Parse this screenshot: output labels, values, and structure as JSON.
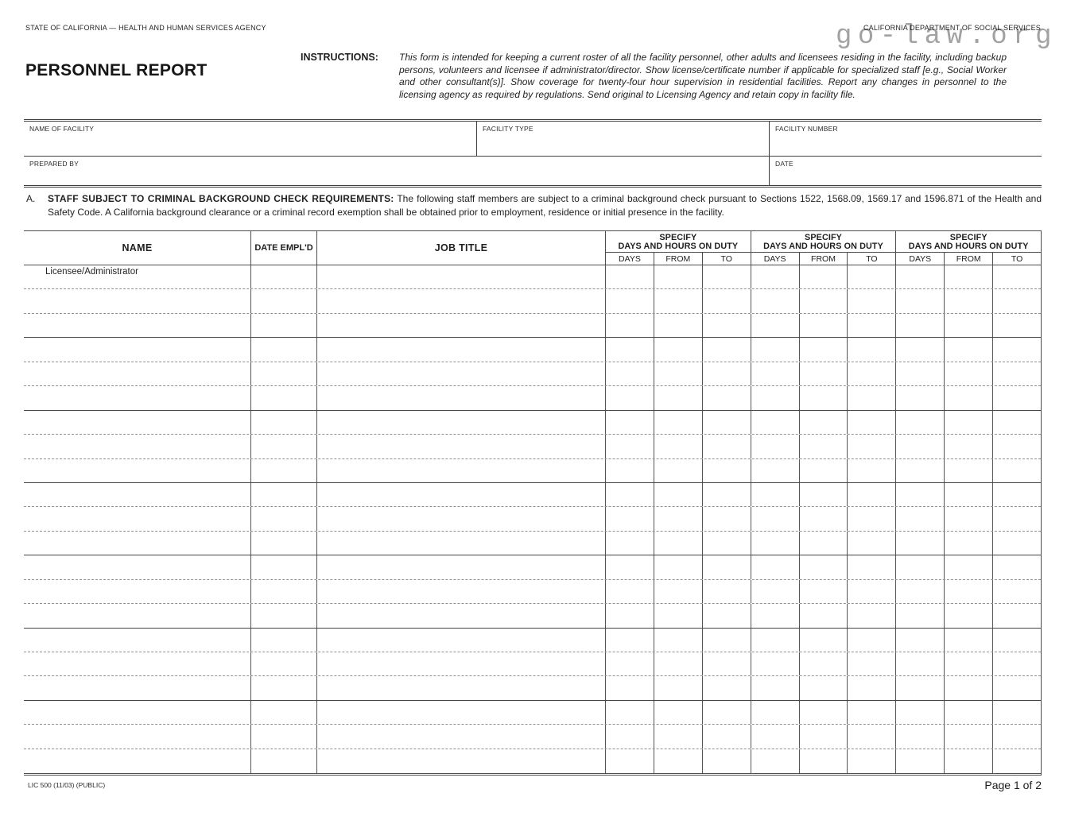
{
  "header": {
    "agency_line": "STATE OF CALIFORNIA — HEALTH AND HUMAN SERVICES AGENCY",
    "department_line": "CALIFORNIA DEPARTMENT OF SOCIAL SERVICES",
    "title": "PERSONNEL REPORT",
    "watermark": "go-law.org"
  },
  "instructions": {
    "label": "INSTRUCTIONS:",
    "text": "This form is intended for keeping a current roster of all the facility personnel, other adults and licensees residing in the facility, including backup persons, volunteers and licensee if administrator/director. Show license/certificate number if applicable for specialized staff [e.g., Social Worker and other consultant(s)]. Show coverage for twenty-four hour supervision in residential facilities. Report any changes in personnel to the licensing agency as required by regulations. Send original to Licensing Agency and retain copy in facility file."
  },
  "facility_fields": {
    "name_of_facility_label": "NAME OF FACILITY",
    "facility_type_label": "FACILITY TYPE",
    "facility_number_label": "FACILITY NUMBER",
    "prepared_by_label": "PREPARED BY",
    "date_label": "DATE"
  },
  "section_a": {
    "item_letter": "A.",
    "heading": "STAFF SUBJECT TO CRIMINAL BACKGROUND CHECK REQUIREMENTS:",
    "body": "The following staff members are subject to a criminal background check pursuant to Sections 1522, 1568.09, 1569.17 and 1596.871 of the Health and Safety Code. A California background clearance or a criminal record exemption shall be obtained prior to employment, residence or initial presence in the facility."
  },
  "table": {
    "columns": [
      {
        "label": "NAME"
      },
      {
        "label": "DATE EMPL'D"
      },
      {
        "label": "JOB TITLE"
      }
    ],
    "duty_groups": [
      {
        "line1": "SPECIFY",
        "line2": "DAYS AND HOURS ON DUTY",
        "sub": [
          "DAYS",
          "FROM",
          "TO"
        ]
      },
      {
        "line1": "SPECIFY",
        "line2": "DAYS AND HOURS ON DUTY",
        "sub": [
          "DAYS",
          "FROM",
          "TO"
        ]
      },
      {
        "line1": "SPECIFY",
        "line2": "DAYS AND HOURS ON DUTY",
        "sub": [
          "DAYS",
          "FROM",
          "TO"
        ]
      }
    ],
    "body": {
      "blocks": 7,
      "rows_per_block": 3,
      "first_row_name": "Licensee/Administrator"
    }
  },
  "footer": {
    "form_number": "LIC 500 (11/03) (PUBLIC)",
    "page": "Page 1 of 2"
  },
  "colors": {
    "watermark": "#a2a2a2",
    "rule_solid": "#4d4d4d",
    "rule_dashed": "#919191"
  }
}
